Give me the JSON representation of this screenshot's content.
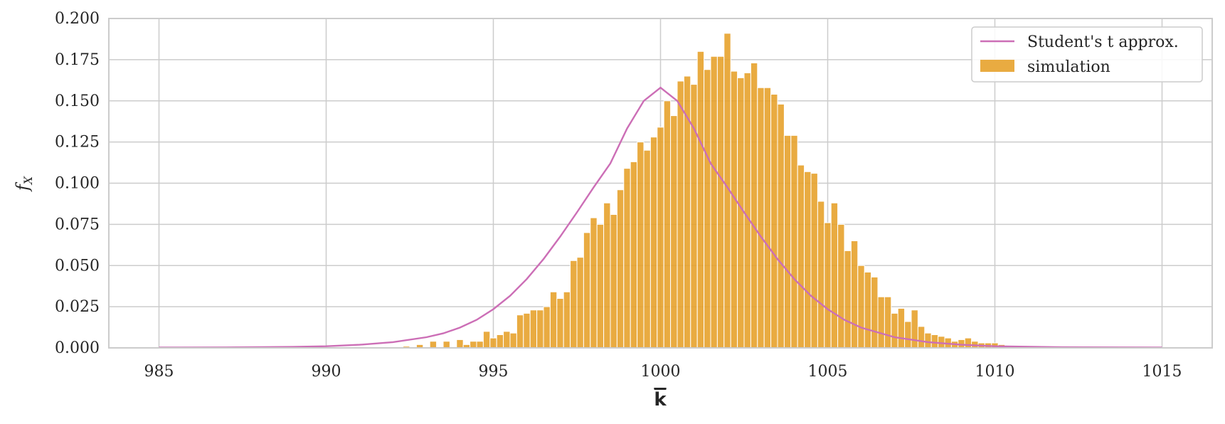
{
  "chart_data": {
    "type": "bar",
    "xlabel": "k",
    "ylabel": "f_X",
    "xlim": [
      983.5,
      1016.5
    ],
    "ylim": [
      0,
      0.2
    ],
    "xticks": [
      "985",
      "990",
      "995",
      "1000",
      "1005",
      "1010",
      "1015"
    ],
    "yticks": [
      "0.000",
      "0.025",
      "0.050",
      "0.075",
      "0.100",
      "0.125",
      "0.150",
      "0.175",
      "0.200"
    ],
    "grid": true,
    "legend_position": "top-right",
    "colors": {
      "simulation": "#E69F27",
      "student_t": "#CC6EB6"
    },
    "series": [
      {
        "name": "Student's t approx.",
        "kind": "line",
        "x": [
          985,
          987,
          989,
          990,
          991,
          992,
          993,
          993.5,
          994,
          994.5,
          995,
          995.5,
          996,
          996.5,
          997,
          997.5,
          998,
          998.5,
          999,
          999.5,
          1000,
          1000.5,
          1001,
          1001.5,
          1002,
          1002.5,
          1003,
          1003.5,
          1004,
          1004.5,
          1005,
          1005.5,
          1006,
          1007,
          1008,
          1009,
          1010,
          1012,
          1015
        ],
        "y": [
          0.0002,
          0.0003,
          0.0006,
          0.001,
          0.0019,
          0.0035,
          0.0065,
          0.0088,
          0.0123,
          0.017,
          0.0235,
          0.0316,
          0.0418,
          0.0539,
          0.0676,
          0.0823,
          0.0975,
          0.112,
          0.1332,
          0.15,
          0.158,
          0.15,
          0.1332,
          0.112,
          0.0975,
          0.0823,
          0.0676,
          0.0539,
          0.0418,
          0.0316,
          0.0235,
          0.017,
          0.0123,
          0.0065,
          0.0035,
          0.0019,
          0.001,
          0.0004,
          0.0002
        ]
      },
      {
        "name": "simulation",
        "kind": "histogram",
        "bin_width": 0.2,
        "bin_start": 992.3,
        "values": [
          0.001,
          0,
          0.002,
          0,
          0.004,
          0,
          0.004,
          0,
          0.005,
          0.002,
          0.004,
          0.004,
          0.01,
          0.006,
          0.008,
          0.01,
          0.009,
          0.02,
          0.021,
          0.023,
          0.023,
          0.025,
          0.034,
          0.03,
          0.034,
          0.053,
          0.055,
          0.07,
          0.079,
          0.075,
          0.088,
          0.081,
          0.096,
          0.109,
          0.113,
          0.125,
          0.12,
          0.128,
          0.134,
          0.15,
          0.141,
          0.162,
          0.165,
          0.16,
          0.18,
          0.169,
          0.177,
          0.177,
          0.191,
          0.168,
          0.164,
          0.167,
          0.173,
          0.158,
          0.158,
          0.154,
          0.148,
          0.129,
          0.129,
          0.111,
          0.107,
          0.106,
          0.089,
          0.076,
          0.088,
          0.075,
          0.059,
          0.065,
          0.05,
          0.046,
          0.043,
          0.031,
          0.031,
          0.021,
          0.024,
          0.016,
          0.023,
          0.013,
          0.009,
          0.008,
          0.007,
          0.006,
          0.004,
          0.005,
          0.006,
          0.004,
          0.003,
          0.003,
          0.003,
          0.002
        ]
      }
    ]
  }
}
